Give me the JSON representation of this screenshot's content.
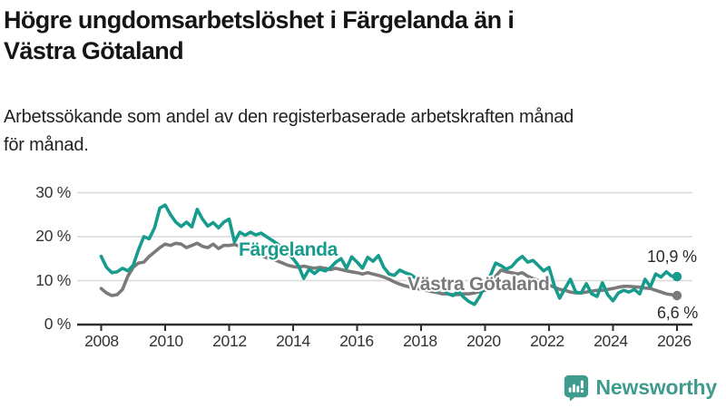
{
  "header": {
    "title_lines": [
      "Högre ungdomsarbetslöshet i Färgelanda än i",
      "Västra Götaland"
    ],
    "subtitle_lines": [
      "Arbetssökande som andel av den registerbaserade arbetskraften månad",
      "för månad."
    ]
  },
  "chart_data": {
    "type": "line",
    "title": "Högre ungdomsarbetslöshet i Färgelanda än i Västra Götaland",
    "subtitle": "Arbetssökande som andel av den registerbaserade arbetskraften månad för månad.",
    "x_start_year": 2008,
    "x_step_months": 2,
    "xlim": [
      2007.6,
      2026.5
    ],
    "ylim": [
      0,
      30
    ],
    "grid": "horizontal",
    "axis_color": "#2e2e2e",
    "grid_color": "#d9d9d9",
    "yticks": [
      "30 %",
      "20 %",
      "10 %",
      "0 %"
    ],
    "xticks": [
      "2008",
      "2010",
      "2012",
      "2014",
      "2016",
      "2018",
      "2020",
      "2022",
      "2024",
      "2026"
    ],
    "series": [
      {
        "id": "fargelanda",
        "name": "Färgelanda",
        "color": "#169b8c",
        "end_label": "10,9 %",
        "end_value": 10.9,
        "values": [
          15.5,
          13.0,
          11.8,
          12.0,
          12.8,
          12.2,
          13.5,
          17.0,
          20.0,
          19.5,
          22.0,
          26.5,
          27.2,
          25.0,
          23.3,
          22.3,
          23.3,
          22.2,
          26.2,
          24.0,
          22.4,
          23.2,
          22.0,
          23.3,
          24.0,
          18.8,
          21.0,
          20.3,
          21.0,
          20.4,
          20.8,
          20.0,
          19.2,
          18.4,
          17.4,
          16.2,
          15.0,
          13.4,
          10.5,
          12.6,
          11.6,
          12.6,
          12.2,
          12.9,
          14.2,
          15.0,
          12.8,
          15.4,
          14.2,
          12.8,
          15.3,
          14.4,
          15.7,
          13.0,
          11.5,
          11.2,
          12.4,
          11.8,
          11.4,
          10.6,
          10.0,
          9.2,
          8.4,
          7.6,
          8.4,
          7.0,
          6.6,
          7.6,
          6.2,
          5.2,
          4.6,
          6.4,
          9.0,
          11.2,
          14.0,
          13.4,
          12.6,
          13.2,
          14.6,
          15.5,
          14.2,
          14.6,
          13.4,
          12.2,
          13.0,
          8.8,
          6.0,
          8.2,
          10.3,
          7.4,
          7.2,
          9.3,
          7.0,
          6.4,
          9.5,
          6.8,
          5.4,
          7.2,
          7.8,
          7.4,
          8.0,
          7.0,
          10.3,
          8.6,
          11.5,
          10.8,
          12.0,
          11.0,
          10.9
        ]
      },
      {
        "id": "vastra-gotaland",
        "name": "Västra Götaland",
        "color": "#7a7a7a",
        "end_label": "6,6 %",
        "end_value": 6.6,
        "values": [
          8.2,
          7.2,
          6.6,
          6.8,
          8.0,
          11.0,
          13.0,
          14.0,
          14.2,
          15.5,
          16.5,
          17.5,
          18.3,
          18.0,
          18.5,
          18.3,
          17.5,
          18.0,
          18.5,
          17.8,
          17.5,
          18.3,
          17.3,
          18.0,
          18.0,
          18.2,
          17.8,
          17.5,
          17.0,
          16.3,
          15.8,
          15.2,
          15.0,
          14.5,
          14.0,
          13.5,
          13.2,
          13.0,
          13.3,
          13.0,
          12.8,
          13.0,
          12.8,
          12.5,
          12.8,
          12.5,
          12.2,
          12.0,
          11.8,
          11.5,
          11.8,
          11.5,
          11.2,
          10.8,
          10.3,
          9.7,
          9.2,
          8.8,
          8.5,
          8.3,
          8.0,
          7.8,
          7.5,
          7.3,
          7.0,
          7.0,
          6.8,
          6.8,
          7.0,
          7.0,
          7.2,
          7.5,
          7.8,
          8.5,
          11.0,
          12.4,
          12.0,
          11.8,
          11.5,
          11.8,
          11.0,
          10.5,
          10.0,
          9.5,
          9.0,
          8.5,
          8.0,
          7.8,
          7.4,
          7.2,
          7.2,
          7.4,
          7.6,
          7.8,
          7.8,
          8.0,
          8.2,
          8.5,
          8.7,
          8.7,
          8.6,
          8.5,
          8.3,
          8.2,
          7.8,
          7.4,
          7.0,
          6.8,
          6.6
        ]
      }
    ]
  },
  "footer": {
    "brand": "Newsworthy",
    "brand_color": "#3f9b8d"
  }
}
